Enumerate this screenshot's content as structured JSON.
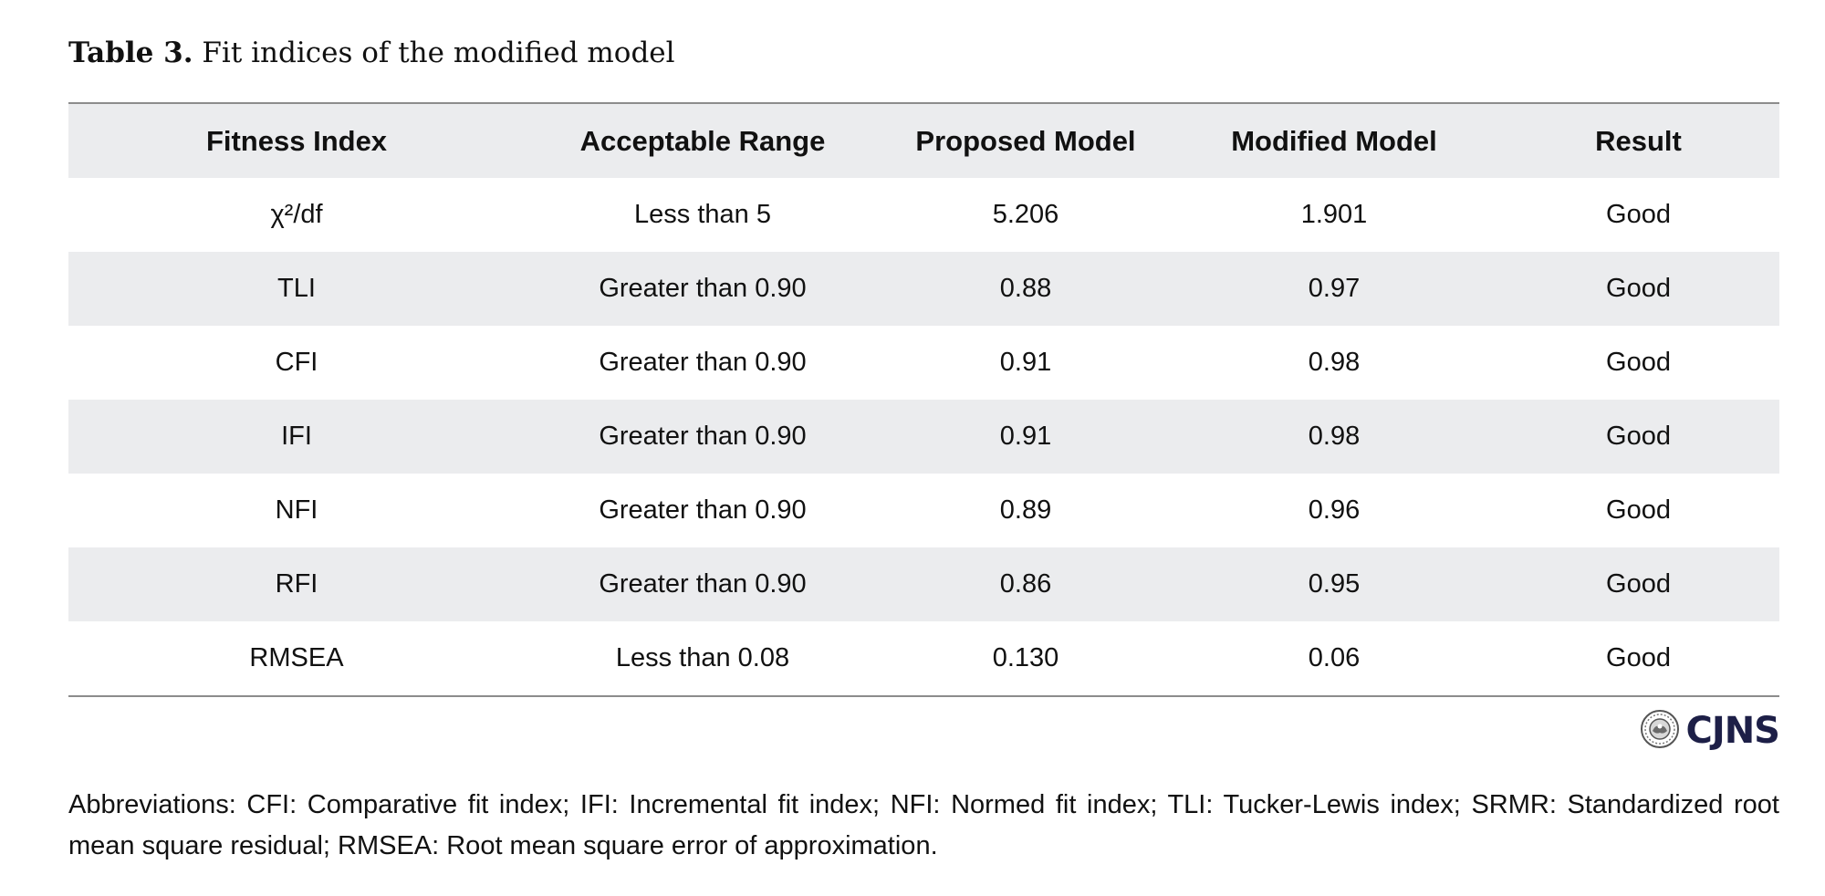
{
  "caption": {
    "label": "Table 3.",
    "text": "Fit indices of the modified model"
  },
  "table": {
    "headers": [
      "Fitness Index",
      "Acceptable Range",
      "Proposed Model",
      "Modified Model",
      "Result"
    ],
    "rows": [
      [
        "χ²/df",
        "Less than 5",
        "5.206",
        "1.901",
        "Good"
      ],
      [
        "TLI",
        "Greater than 0.90",
        "0.88",
        "0.97",
        "Good"
      ],
      [
        "CFI",
        "Greater than 0.90",
        "0.91",
        "0.98",
        "Good"
      ],
      [
        "IFI",
        "Greater than 0.90",
        "0.91",
        "0.98",
        "Good"
      ],
      [
        "NFI",
        "Greater than 0.90",
        "0.89",
        "0.96",
        "Good"
      ],
      [
        "RFI",
        "Greater than 0.90",
        "0.86",
        "0.95",
        "Good"
      ],
      [
        "RMSEA",
        "Less than 0.08",
        "0.130",
        "0.06",
        "Good"
      ]
    ]
  },
  "logo": {
    "text": "CJNS",
    "icon": "journal-seal-icon",
    "color": "#1d1f47"
  },
  "footnote": "Abbreviations: CFI: Comparative fit index; IFI: Incremental fit index; NFI: Normed fit index; TLI: Tucker-Lewis index; SRMR: Standardized root mean square residual; RMSEA: Root mean square error of approximation.",
  "colors": {
    "header_bg": "#ebecee",
    "stripe_bg": "#ebecee",
    "rule": "#8c8c8c"
  }
}
